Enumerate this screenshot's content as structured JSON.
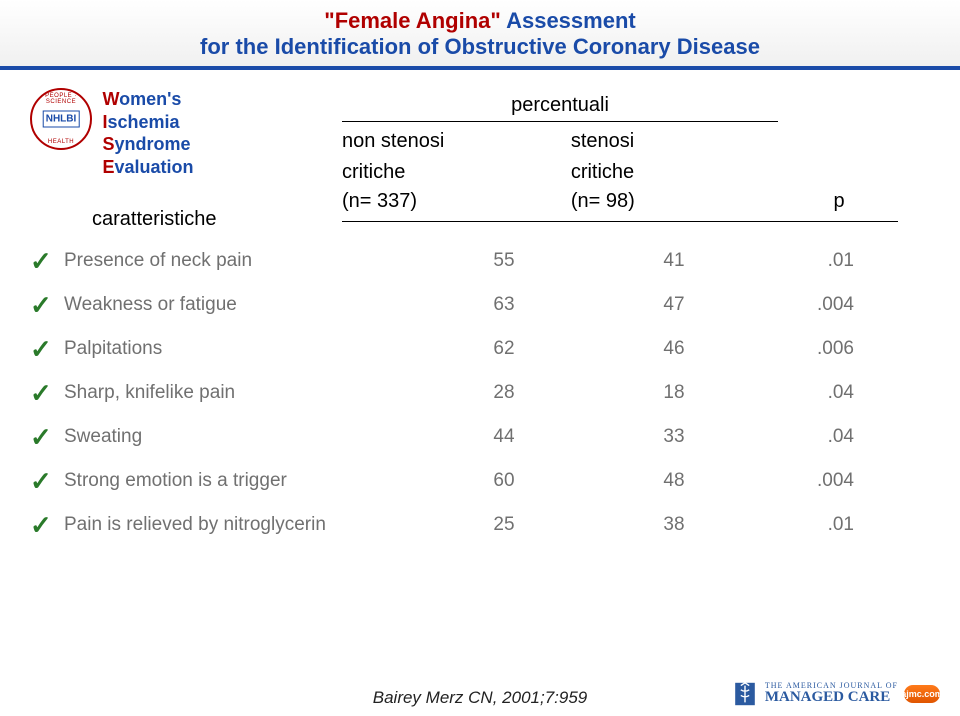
{
  "title": {
    "quoted_red": "\"Female Angina\"",
    "rest_blue": " Assessment",
    "line2": "for the Identification of Obstructive Coronary Disease"
  },
  "wise": {
    "w": "W",
    "w_rest": "omen's",
    "i": "I",
    "i_rest": "schemia",
    "s": "S",
    "s_rest": "yndrome",
    "e": "E",
    "e_rest": "valuation"
  },
  "nhlbi_arc_top": "PEOPLE · SCIENCE",
  "nhlbi_arc_bottom": "HEALTH",
  "labels": {
    "caratteristiche": "caratteristiche",
    "percentuali": "percentuali",
    "non_stenosi": "non stenosi",
    "stenosi": "stenosi",
    "critiche": "critiche",
    "n1": "(n= 337)",
    "n2": "(n= 98)",
    "p": "p"
  },
  "rows": [
    {
      "label": "Presence of neck pain",
      "v1": "55",
      "v2": "41",
      "p": ".01"
    },
    {
      "label": "Weakness or fatigue",
      "v1": "63",
      "v2": "47",
      "p": ".004"
    },
    {
      "label": "Palpitations",
      "v1": "62",
      "v2": "46",
      "p": ".006"
    },
    {
      "label": "Sharp, knifelike pain",
      "v1": "28",
      "v2": "18",
      "p": ".04"
    },
    {
      "label": "Sweating",
      "v1": "44",
      "v2": "33",
      "p": ".04"
    },
    {
      "label": "Strong emotion is a trigger",
      "v1": "60",
      "v2": "48",
      "p": ".004"
    },
    {
      "label": "Pain is relieved by nitroglycerin",
      "v1": "25",
      "v2": "38",
      "p": ".01"
    }
  ],
  "citation": "Bairey Merz CN, 2001;7:959",
  "ajmc": {
    "small": "THE AMERICAN JOURNAL OF",
    "big": "MANAGED CARE",
    "pill": "ajmc.com"
  },
  "colors": {
    "red": "#b00000",
    "blue": "#1a4ba8",
    "check": "#2a7a2a",
    "data_text": "#707070"
  }
}
